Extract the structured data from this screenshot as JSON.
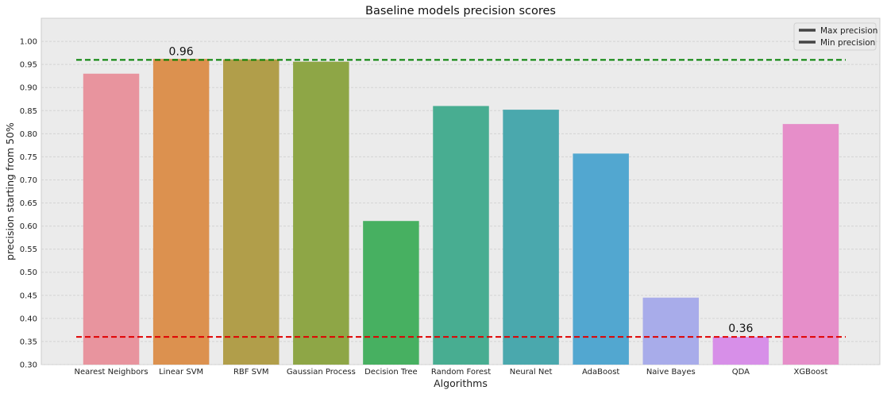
{
  "chart_data": {
    "type": "bar",
    "title": "Baseline models precision scores",
    "xlabel": "Algorithms",
    "ylabel": "precision starting from 50%",
    "categories": [
      "Nearest Neighbors",
      "Linear SVM",
      "RBF SVM",
      "Gaussian Process",
      "Decision Tree",
      "Random Forest",
      "Neural Net",
      "AdaBoost",
      "Naive Bayes",
      "QDA",
      "XGBoost"
    ],
    "values": [
      0.93,
      0.962,
      0.961,
      0.956,
      0.611,
      0.86,
      0.852,
      0.757,
      0.445,
      0.36,
      0.821
    ],
    "colors": [
      "#e8949e",
      "#dc914f",
      "#b19e4a",
      "#8ea646",
      "#47b061",
      "#48ad91",
      "#4aa8ad",
      "#52a7d0",
      "#a8acea",
      "#d78fe8",
      "#e68ec9"
    ],
    "ylim": [
      0.3,
      1.05
    ],
    "yticks": [
      "0.30",
      "0.35",
      "0.40",
      "0.45",
      "0.50",
      "0.55",
      "0.60",
      "0.65",
      "0.70",
      "0.75",
      "0.80",
      "0.85",
      "0.90",
      "0.95",
      "1.00"
    ],
    "grid": true,
    "legend_position": "top-right",
    "reference_lines": [
      {
        "name": "Max precision",
        "value": 0.96,
        "color": "#008000",
        "legend_color": "#444444",
        "label": "0.96",
        "label_category": "Linear SVM"
      },
      {
        "name": "Min precision",
        "value": 0.36,
        "color": "#e00000",
        "legend_color": "#444444",
        "label": "0.36",
        "label_category": "QDA"
      }
    ]
  }
}
